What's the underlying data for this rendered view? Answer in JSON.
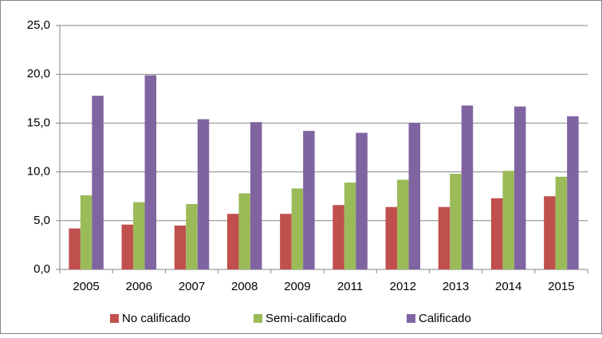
{
  "chart_data": {
    "type": "bar",
    "categories": [
      "2005",
      "2006",
      "2007",
      "2008",
      "2009",
      "2011",
      "2012",
      "2013",
      "2014",
      "2015"
    ],
    "series": [
      {
        "name": "No calificado",
        "color": "#c0504d",
        "values": [
          4.2,
          4.6,
          4.5,
          5.7,
          5.7,
          6.6,
          6.4,
          6.4,
          7.3,
          7.5
        ]
      },
      {
        "name": "Semi-calificado",
        "color": "#9bbb59",
        "values": [
          7.6,
          6.9,
          6.7,
          7.8,
          8.3,
          8.9,
          9.2,
          9.8,
          10.1,
          9.5
        ]
      },
      {
        "name": "Calificado",
        "color": "#8064a2",
        "values": [
          17.8,
          19.9,
          15.4,
          15.1,
          14.2,
          14.0,
          15.0,
          16.8,
          16.7,
          15.7
        ]
      }
    ],
    "ylim": [
      0,
      25
    ],
    "yticks": [
      {
        "value": 0,
        "label": "0,0"
      },
      {
        "value": 5,
        "label": "5,0"
      },
      {
        "value": 10,
        "label": "10,0"
      },
      {
        "value": 15,
        "label": "15,0"
      },
      {
        "value": 20,
        "label": "20,0"
      },
      {
        "value": 25,
        "label": "25,0"
      }
    ],
    "grid": true,
    "legend": "bottom"
  }
}
